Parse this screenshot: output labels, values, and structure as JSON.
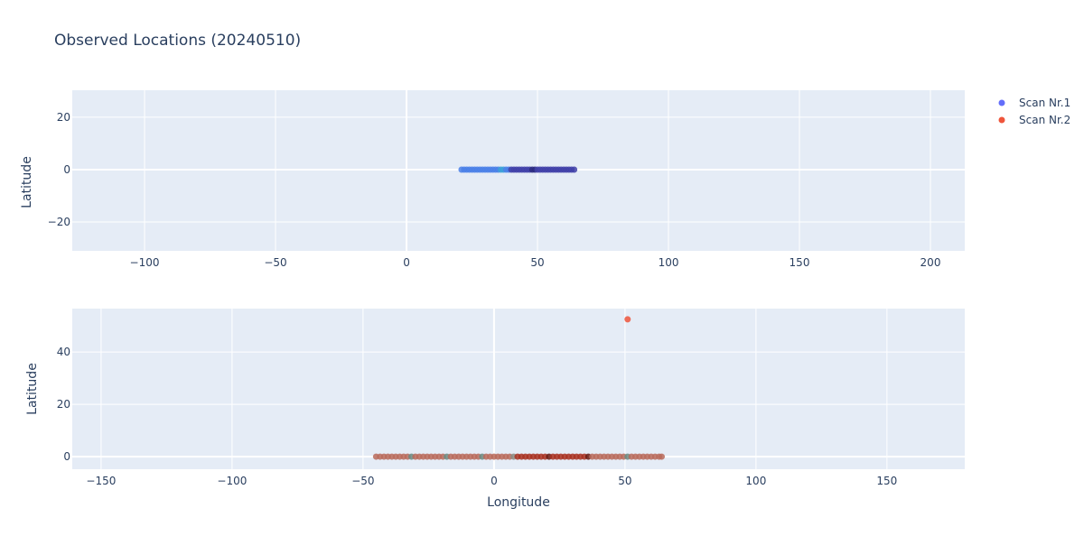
{
  "chart_data": [
    {
      "type": "scatter",
      "title": "Observed Locations (20240510)",
      "ylabel": "Latitude",
      "xlabel": "",
      "xlim": [
        -127.6,
        213.1
      ],
      "ylim": [
        -31,
        30.3
      ],
      "xticks": [
        -100,
        -50,
        0,
        50,
        100,
        150,
        200
      ],
      "yticks": [
        -20,
        0,
        20
      ],
      "grid": true,
      "series": [
        {
          "name": "Scan Nr.1",
          "legend_color": "#636efa",
          "points": {
            "lon": [
              21,
              22,
              23,
              24,
              25,
              26,
              27,
              28,
              29,
              30,
              31,
              32,
              33,
              34,
              35,
              36,
              37,
              38,
              39,
              40,
              41,
              42,
              43,
              44,
              45,
              46,
              47,
              48,
              49,
              50,
              51,
              52,
              53,
              54,
              55,
              56,
              57,
              58,
              59,
              60,
              61,
              62,
              63,
              64
            ],
            "lat": [
              0,
              0,
              0,
              0,
              0,
              0,
              0,
              0,
              0,
              0,
              0,
              0,
              0,
              0,
              0,
              0,
              0,
              0,
              0,
              0,
              0,
              0,
              0,
              0,
              0,
              0,
              0,
              0,
              0,
              0,
              0,
              0,
              0,
              0,
              0,
              0,
              0,
              0,
              0,
              0,
              0,
              0,
              0,
              0
            ],
            "color": [
              "#4a80e8",
              "#4a80e8",
              "#4a80e8",
              "#4a80e8",
              "#4a80e8",
              "#4a80e8",
              "#4a80e8",
              "#4a80e8",
              "#4a80e8",
              "#4a80e8",
              "#4a80e8",
              "#4a80e8",
              "#4a80e8",
              "#4a80e8",
              "#4a80e8",
              "#3aa0d8",
              "#3aa0d8",
              "#4a80e8",
              "#4a80e8",
              "#3f40a8",
              "#3f40a8",
              "#3f40a8",
              "#3f40a8",
              "#3f40a8",
              "#3f40a8",
              "#3f40a8",
              "#3f40a8",
              "#2a2a80",
              "#2a2a80",
              "#3f40a8",
              "#3f40a8",
              "#3f40a8",
              "#3f40a8",
              "#3f40a8",
              "#3f40a8",
              "#3f40a8",
              "#3f40a8",
              "#3f40a8",
              "#3f40a8",
              "#3f40a8",
              "#3f40a8",
              "#3f40a8",
              "#3f40a8",
              "#3f40a8"
            ]
          }
        }
      ]
    },
    {
      "type": "scatter",
      "xlabel": "Longitude",
      "ylabel": "Latitude",
      "xlim": [
        -161,
        179.7
      ],
      "ylim": [
        -4.8,
        56.6
      ],
      "xticks": [
        -150,
        -100,
        -50,
        0,
        50,
        100,
        150
      ],
      "yticks": [
        0,
        20,
        40
      ],
      "grid": true,
      "series": [
        {
          "name": "Scan Nr.2",
          "legend_color": "#ef553b",
          "points": {
            "lon": [
              -45,
              -43.5,
              -42,
              -40.5,
              -39,
              -37.5,
              -36,
              -34.5,
              -33,
              -31.5,
              -30,
              -28.5,
              -27,
              -25.5,
              -24,
              -22.5,
              -21,
              -19.5,
              -18,
              -16.5,
              -15,
              -13.5,
              -12,
              -10.5,
              -9,
              -7.5,
              -6,
              -4.5,
              -3,
              -1.5,
              0,
              1.5,
              3,
              4.5,
              6,
              7.5,
              9,
              10.5,
              12,
              13.5,
              15,
              16.5,
              18,
              19.5,
              21,
              22.5,
              24,
              25.5,
              27,
              28.5,
              30,
              31.5,
              33,
              34.5,
              36,
              37.5,
              39,
              40.5,
              42,
              43.5,
              45,
              46.5,
              48,
              49.5,
              51,
              52.5,
              54,
              55.5,
              57,
              58.5,
              60,
              61.5,
              63,
              64,
              51
            ],
            "lat": [
              0,
              0,
              0,
              0,
              0,
              0,
              0,
              0,
              0,
              0,
              0,
              0,
              0,
              0,
              0,
              0,
              0,
              0,
              0,
              0,
              0,
              0,
              0,
              0,
              0,
              0,
              0,
              0,
              0,
              0,
              0,
              0,
              0,
              0,
              0,
              0,
              0,
              0,
              0,
              0,
              0,
              0,
              0,
              0,
              0,
              0,
              0,
              0,
              0,
              0,
              0,
              0,
              0,
              0,
              0,
              0,
              0,
              0,
              0,
              0,
              0,
              0,
              0,
              0,
              0,
              0,
              0,
              0,
              0,
              0,
              0,
              0,
              0,
              0,
              52.5
            ],
            "color": [
              "#b86a5a",
              "#b86a5a",
              "#b86a5a",
              "#b86a5a",
              "#b86a5a",
              "#b86a5a",
              "#b86a5a",
              "#b86a5a",
              "#b86a5a",
              "#6a8a80",
              "#b86a5a",
              "#b86a5a",
              "#b86a5a",
              "#b86a5a",
              "#b86a5a",
              "#b86a5a",
              "#b86a5a",
              "#b86a5a",
              "#6a8a80",
              "#b86a5a",
              "#b86a5a",
              "#b86a5a",
              "#b86a5a",
              "#b86a5a",
              "#b86a5a",
              "#b86a5a",
              "#b86a5a",
              "#6a8a80",
              "#b86a5a",
              "#b86a5a",
              "#b86a5a",
              "#b86a5a",
              "#b86a5a",
              "#b86a5a",
              "#b86a5a",
              "#8a8a80",
              "#a83020",
              "#a83020",
              "#a83020",
              "#a83020",
              "#a83020",
              "#a83020",
              "#a83020",
              "#a83020",
              "#6a1a10",
              "#a83020",
              "#a83020",
              "#a83020",
              "#a83020",
              "#a83020",
              "#a83020",
              "#a83020",
              "#a83020",
              "#a83020",
              "#6a1a10",
              "#b86a5a",
              "#b86a5a",
              "#b86a5a",
              "#b86a5a",
              "#b86a5a",
              "#b86a5a",
              "#b86a5a",
              "#b86a5a",
              "#b86a5a",
              "#6a8a80",
              "#b86a5a",
              "#b86a5a",
              "#b86a5a",
              "#b86a5a",
              "#b86a5a",
              "#b86a5a",
              "#b86a5a",
              "#b86a5a",
              "#b86a5a",
              "#ef553b"
            ]
          }
        }
      ]
    }
  ],
  "colors": {
    "plot_bg": "#e5ecf6",
    "grid": "#ffffff",
    "text": "#2a3f5f"
  }
}
